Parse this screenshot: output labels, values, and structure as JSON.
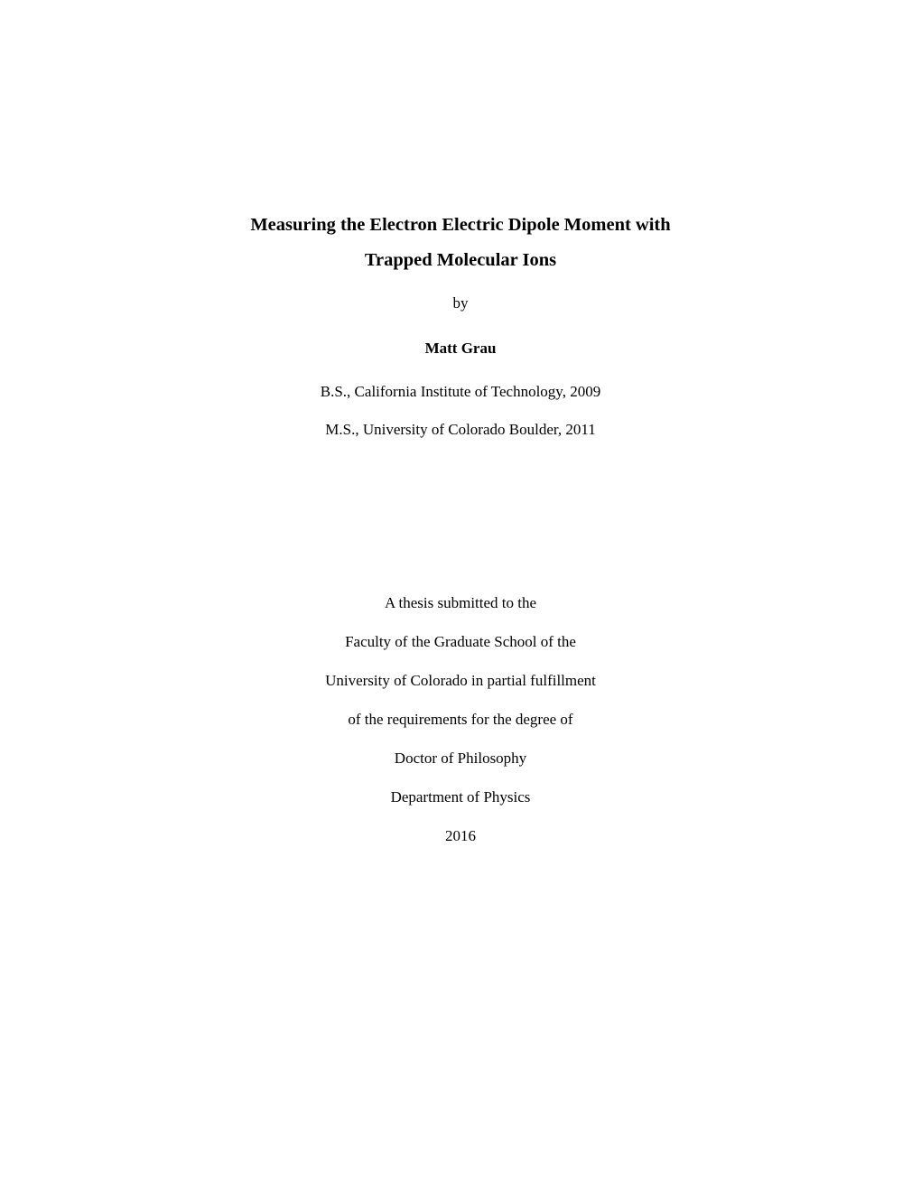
{
  "title_line1": "Measuring the Electron Electric Dipole Moment with",
  "title_line2": "Trapped Molecular Ions",
  "by": "by",
  "author": "Matt Grau",
  "degree1": "B.S., California Institute of Technology, 2009",
  "degree2": "M.S., University of Colorado Boulder, 2011",
  "submission": {
    "line1": "A thesis submitted to the",
    "line2": "Faculty of the Graduate School of the",
    "line3": "University of Colorado in partial fulfillment",
    "line4": "of the requirements for the degree of",
    "line5": "Doctor of Philosophy",
    "line6": "Department of Physics",
    "line7": "2016"
  }
}
